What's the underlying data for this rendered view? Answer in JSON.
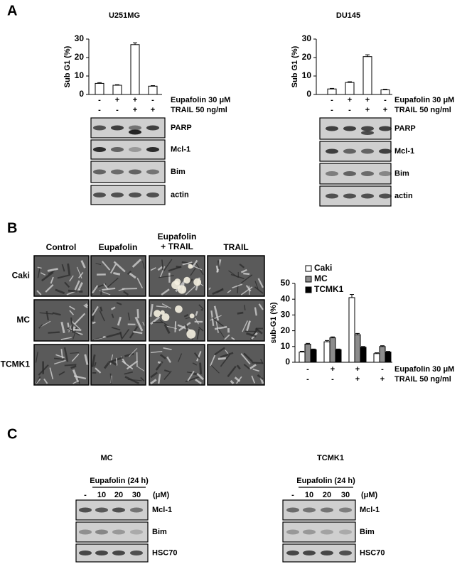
{
  "panel_labels": [
    "A",
    "B",
    "C"
  ],
  "chart_data": [
    {
      "type": "bar",
      "title": "U251MG",
      "y_label": "Sub G1 (%)",
      "values": [
        6,
        5,
        27,
        4.5
      ],
      "errors": [
        0.4,
        0.3,
        1,
        0.3
      ],
      "color": "#ffffff",
      "ylim": [
        0,
        30
      ],
      "yticks": [
        0,
        10,
        20,
        30
      ],
      "treatments": [
        {
          "name": "Eupafolin 30 μM",
          "signs": [
            "-",
            "+",
            "+",
            "-"
          ]
        },
        {
          "name": "TRAIL 50 ng/ml",
          "signs": [
            "-",
            "-",
            "+",
            "+"
          ]
        }
      ]
    },
    {
      "type": "bar",
      "title": "DU145",
      "y_label": "Sub G1 (%)",
      "values": [
        3,
        6.5,
        20.5,
        2.5
      ],
      "errors": [
        0.3,
        0.4,
        1,
        0.3
      ],
      "color": "#ffffff",
      "ylim": [
        0,
        30
      ],
      "yticks": [
        0,
        10,
        20,
        30
      ],
      "treatments": [
        {
          "name": "Eupafolin 30 μM",
          "signs": [
            "-",
            "+",
            "+",
            "-"
          ]
        },
        {
          "name": "TRAIL 50 ng/ml",
          "signs": [
            "-",
            "-",
            "+",
            "+"
          ]
        }
      ]
    },
    {
      "type": "bar",
      "y_label": "sub-G1 (%)",
      "series": [
        {
          "name": "Caki",
          "color": "#ffffff",
          "values": [
            6.5,
            13,
            41,
            5.5
          ],
          "errors": [
            0.5,
            0.8,
            2,
            0.5
          ]
        },
        {
          "name": "MC",
          "color": "#8c8c8c",
          "values": [
            11.5,
            15.5,
            17.5,
            10
          ],
          "errors": [
            0.5,
            0.6,
            0.8,
            0.5
          ]
        },
        {
          "name": "TCMK1",
          "color": "#000000",
          "values": [
            8,
            8,
            9.5,
            6.5
          ],
          "errors": [
            0.4,
            0.4,
            0.5,
            0.4
          ]
        }
      ],
      "ylim": [
        0,
        50
      ],
      "yticks": [
        0,
        10,
        20,
        30,
        40,
        50
      ],
      "treatments": [
        {
          "name": "Eupafolin 30 μM",
          "signs": [
            "-",
            "+",
            "+",
            "-"
          ]
        },
        {
          "name": "TRAIL 50 ng/ml",
          "signs": [
            "-",
            "-",
            "+",
            "+"
          ]
        }
      ]
    }
  ],
  "panel_a_blots": [
    {
      "labels": [
        "PARP",
        "Mcl-1",
        "Bim",
        "actin"
      ]
    },
    {
      "labels": [
        "PARP",
        "Mcl-1",
        "Bim",
        "actin"
      ]
    }
  ],
  "panel_b_images": {
    "columns": [
      [
        "Control"
      ],
      [
        "Eupafolin"
      ],
      [
        "Eupafolin",
        "+ TRAIL"
      ],
      [
        "TRAIL"
      ]
    ],
    "rows": [
      "Caki",
      "MC",
      "TCMK1"
    ]
  },
  "panel_c_blots": [
    {
      "title": "MC",
      "treatment": "Eupafolin (24 h)",
      "lanes": [
        "-",
        "10",
        "20",
        "30"
      ],
      "unit": "(μM)",
      "labels": [
        "Mcl-1",
        "Bim",
        "HSC70"
      ]
    },
    {
      "title": "TCMK1",
      "treatment": "Eupafolin (24 h)",
      "lanes": [
        "-",
        "10",
        "20",
        "30"
      ],
      "unit": "(μM)",
      "labels": [
        "Mcl-1",
        "Bim",
        "HSC70"
      ]
    }
  ]
}
